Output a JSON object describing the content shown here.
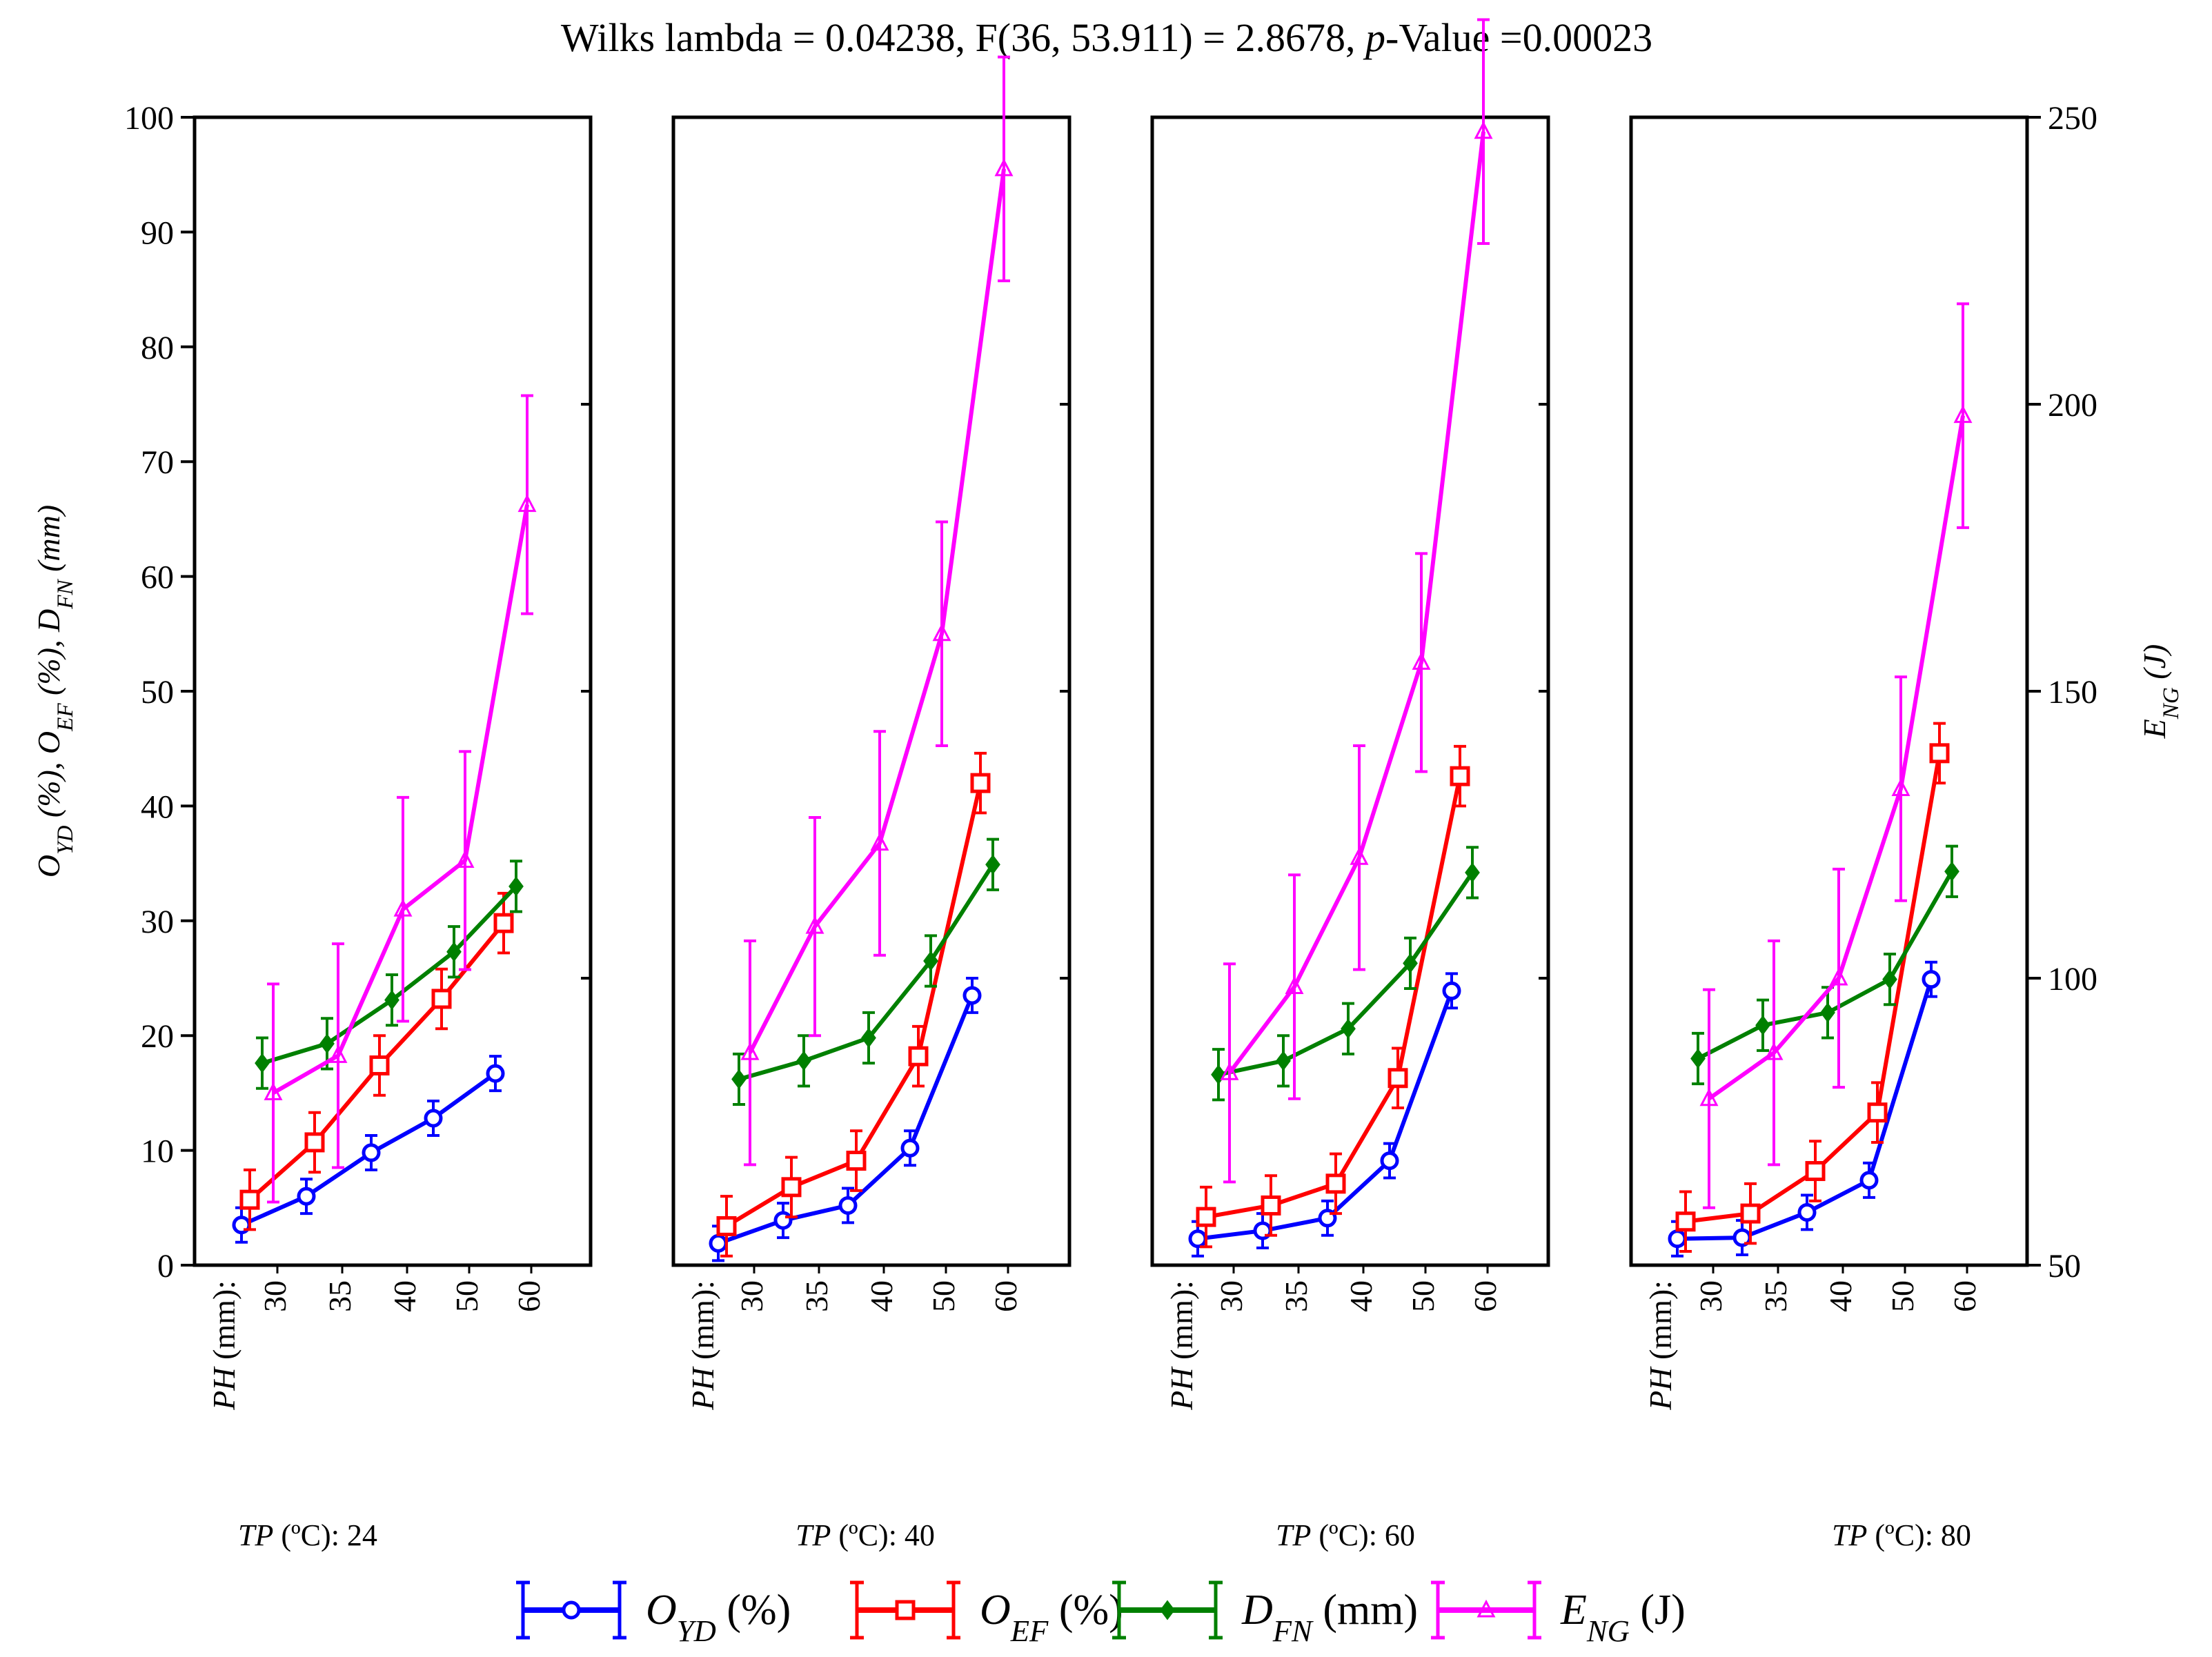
{
  "chart_data": {
    "type": "line",
    "title": {
      "prefix": "Wilks lambda = 0.04238, F(36, 53.911) = 2.8678, ",
      "p": "p",
      "suffix": "-Value =0.00023"
    },
    "left_axis": {
      "label": [
        {
          "t": "O"
        },
        {
          "t": "YD",
          "sub": true
        },
        {
          "t": " (%), "
        },
        {
          "t": "O"
        },
        {
          "t": "EF",
          "sub": true
        },
        {
          "t": " (%), "
        },
        {
          "t": "D"
        },
        {
          "t": "FN",
          "sub": true
        },
        {
          "t": " (mm)"
        }
      ],
      "min": 0,
      "max": 100,
      "ticks": [
        "0",
        "10",
        "20",
        "30",
        "40",
        "50",
        "60",
        "70",
        "80",
        "90",
        "100"
      ]
    },
    "right_axis": {
      "label": [
        {
          "t": "E"
        },
        {
          "t": "NG",
          "sub": true
        },
        {
          "t": " (J)"
        }
      ],
      "min": 50,
      "max": 250,
      "ticks": [
        "50",
        "100",
        "150",
        "200",
        "250"
      ]
    },
    "x_label": {
      "var": "PH",
      "unit": " (mm):"
    },
    "categories": [
      "30",
      "35",
      "40",
      "50",
      "60"
    ],
    "panels": [
      {
        "label_var": "TP",
        "label_rest": " (ºC): 24"
      },
      {
        "label_var": "TP",
        "label_rest": " (ºC): 40"
      },
      {
        "label_var": "TP",
        "label_rest": " (ºC): 60"
      },
      {
        "label_var": "TP",
        "label_rest": " (ºC): 80"
      }
    ],
    "series": [
      {
        "key": "oyd",
        "color": "#0000ff",
        "marker": "circle",
        "axis": "left",
        "legend": [
          {
            "t": "O",
            "i": true
          },
          {
            "t": "YD",
            "i": true,
            "sub": true
          },
          {
            "t": " (%)"
          }
        ],
        "values": [
          [
            3.5,
            6.0,
            9.8,
            12.8,
            16.7
          ],
          [
            1.9,
            3.9,
            5.2,
            10.2,
            23.5
          ],
          [
            2.3,
            3.0,
            4.1,
            9.1,
            23.9
          ],
          [
            2.3,
            2.4,
            4.6,
            7.4,
            24.9
          ]
        ],
        "errors": [
          [
            1.5,
            1.5,
            1.5,
            1.5,
            1.5
          ],
          [
            1.5,
            1.5,
            1.5,
            1.5,
            1.5
          ],
          [
            1.5,
            1.5,
            1.5,
            1.5,
            1.5
          ],
          [
            1.5,
            1.5,
            1.5,
            1.5,
            1.5
          ]
        ]
      },
      {
        "key": "oef",
        "color": "#ff0000",
        "marker": "square",
        "axis": "left",
        "legend": [
          {
            "t": "O",
            "i": true
          },
          {
            "t": "EF",
            "i": true,
            "sub": true
          },
          {
            "t": " (%)"
          }
        ],
        "values": [
          [
            5.7,
            10.7,
            17.4,
            23.2,
            29.8
          ],
          [
            3.4,
            6.8,
            9.1,
            18.2,
            42.0
          ],
          [
            4.2,
            5.2,
            7.1,
            16.3,
            42.6
          ],
          [
            3.8,
            4.5,
            8.2,
            13.3,
            44.6
          ]
        ],
        "errors": [
          [
            2.6,
            2.6,
            2.6,
            2.6,
            2.6
          ],
          [
            2.6,
            2.6,
            2.6,
            2.6,
            2.6
          ],
          [
            2.6,
            2.6,
            2.6,
            2.6,
            2.6
          ],
          [
            2.6,
            2.6,
            2.6,
            2.6,
            2.6
          ]
        ]
      },
      {
        "key": "dfn",
        "color": "#008000",
        "marker": "diamond",
        "axis": "left",
        "legend": [
          {
            "t": "D",
            "i": true
          },
          {
            "t": "FN",
            "i": true,
            "sub": true
          },
          {
            "t": " (mm)"
          }
        ],
        "values": [
          [
            17.6,
            19.3,
            23.1,
            27.3,
            33.0
          ],
          [
            16.2,
            17.8,
            19.8,
            26.5,
            34.9
          ],
          [
            16.6,
            17.8,
            20.6,
            26.3,
            34.2
          ],
          [
            18.0,
            20.9,
            22.0,
            24.9,
            34.3
          ]
        ],
        "errors": [
          [
            2.2,
            2.2,
            2.2,
            2.2,
            2.2
          ],
          [
            2.2,
            2.2,
            2.2,
            2.2,
            2.2
          ],
          [
            2.2,
            2.2,
            2.2,
            2.2,
            2.2
          ],
          [
            2.2,
            2.2,
            2.2,
            2.2,
            2.2
          ]
        ]
      },
      {
        "key": "eng",
        "color": "#ff00ff",
        "marker": "triangle",
        "axis": "right",
        "legend": [
          {
            "t": "E",
            "i": true
          },
          {
            "t": "NG",
            "i": true,
            "sub": true
          },
          {
            "t": " (J)"
          }
        ],
        "values": [
          [
            80,
            86.5,
            112,
            120.5,
            182.5
          ],
          [
            87,
            109,
            123.5,
            160,
            241
          ],
          [
            83.5,
            98.5,
            121,
            155,
            247.5
          ],
          [
            79,
            87,
            100,
            133,
            198
          ]
        ],
        "errors": [
          [
            19,
            19.5,
            19.5,
            19,
            19
          ],
          [
            19.5,
            19,
            19.5,
            19.5,
            19.5
          ],
          [
            19,
            19.5,
            19.5,
            19,
            19.5
          ],
          [
            19,
            19.5,
            19,
            19.5,
            19.5
          ]
        ]
      }
    ]
  }
}
